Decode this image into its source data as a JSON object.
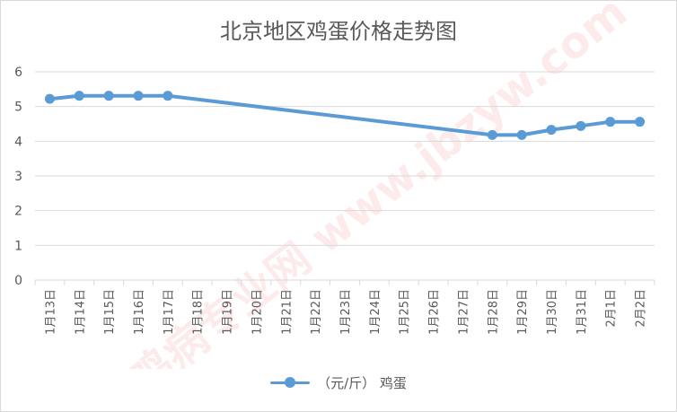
{
  "chart_data": {
    "type": "line",
    "title": "北京地区鸡蛋价格走势图",
    "categories": [
      "1月13日",
      "1月14日",
      "1月15日",
      "1月16日",
      "1月17日",
      "1月18日",
      "1月19日",
      "1月20日",
      "1月21日",
      "1月22日",
      "1月23日",
      "1月24日",
      "1月25日",
      "1月26日",
      "1月27日",
      "1月28日",
      "1月29日",
      "1月30日",
      "1月31日",
      "2月1日",
      "2月2日"
    ],
    "series": [
      {
        "name": "（元/斤） 鸡蛋",
        "values": [
          5.22,
          5.31,
          5.31,
          5.31,
          5.31,
          null,
          null,
          null,
          null,
          null,
          null,
          null,
          null,
          null,
          null,
          4.18,
          4.18,
          4.33,
          4.44,
          4.56,
          4.56
        ],
        "color": "#5b9bd5"
      }
    ],
    "y_ticks": [
      "0",
      "1",
      "2",
      "3",
      "4",
      "5",
      "6"
    ],
    "ylim": [
      0,
      6
    ],
    "grid": true,
    "gap_handling": "connect",
    "legend_position": "bottom",
    "watermark": "鸡病专业网 www.jbzyw.com"
  }
}
